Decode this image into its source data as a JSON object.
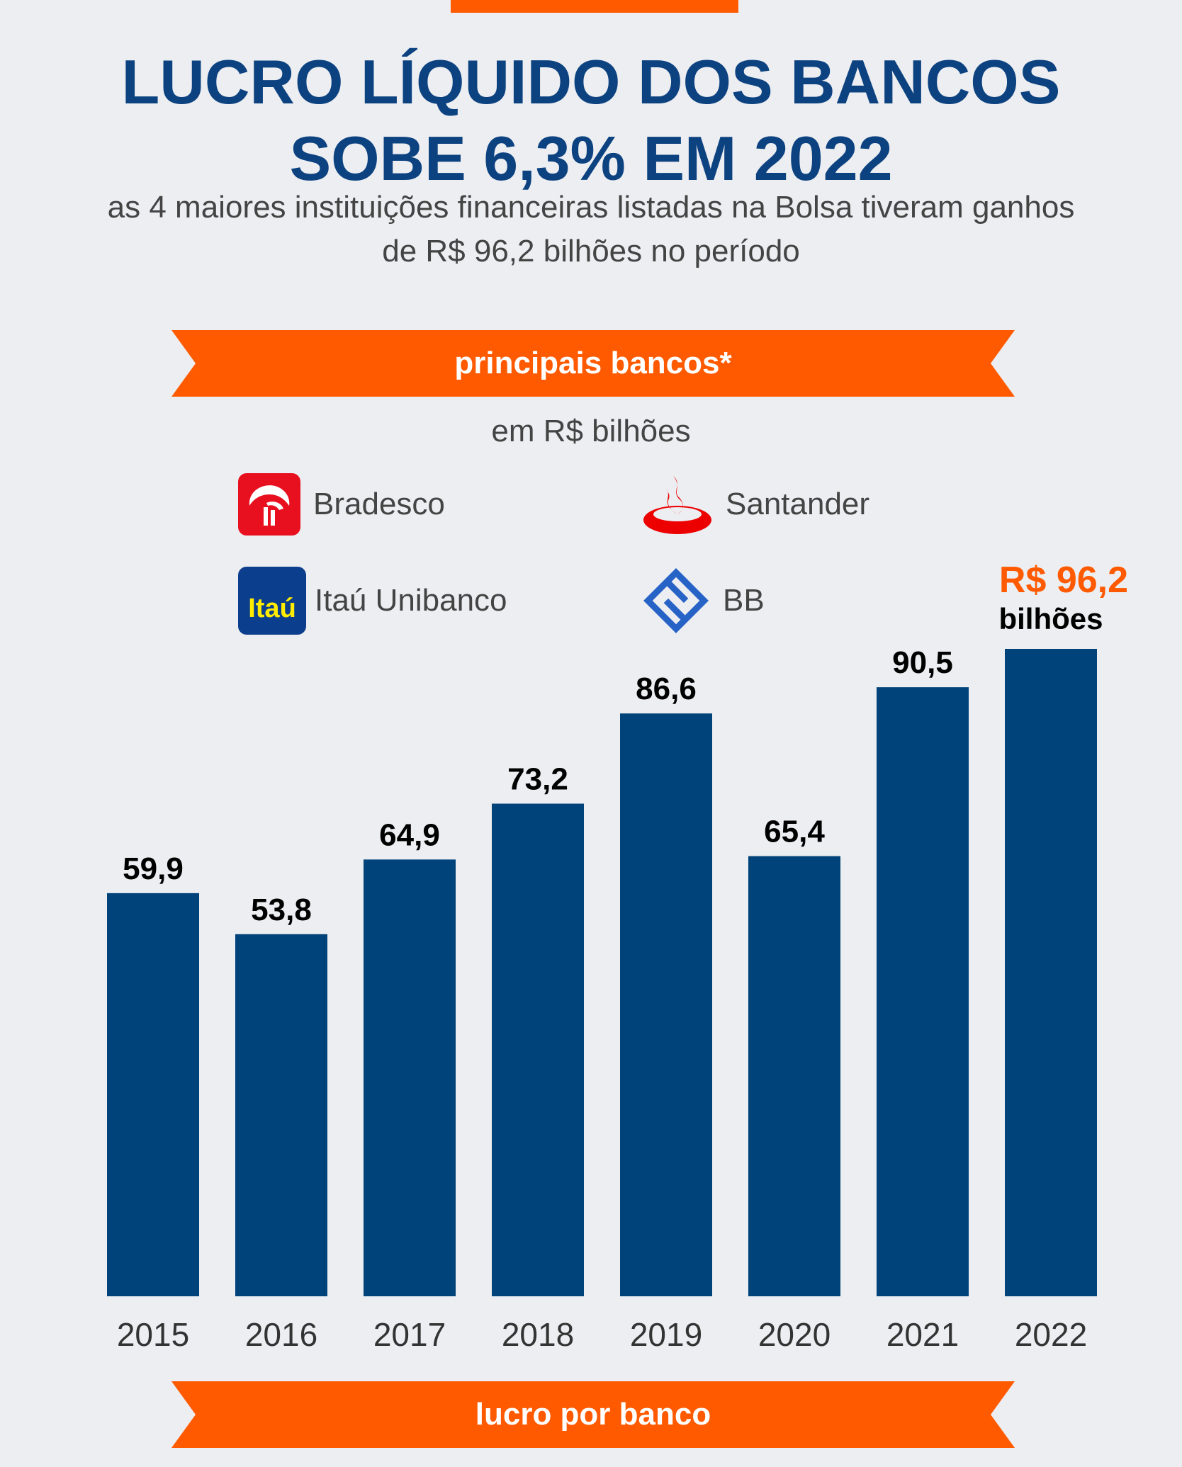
{
  "title_line1": "LUCRO LÍQUIDO DOS BANCOS",
  "title_line2": "SOBE 6,3% EM 2022",
  "subtitle_line1": "as 4 maiores instituições financeiras listadas na Bolsa tiveram ganhos",
  "subtitle_line2": "de R$ 96,2 bilhões no período",
  "ribbon_top": "principais bancos*",
  "unit": "em R$ bilhões",
  "legend": {
    "bradesco": "Bradesco",
    "santander": "Santander",
    "itau": "Itaú Unibanco",
    "itau_logo_text": "Itaú",
    "bb": "BB"
  },
  "ribbon_bottom": "lucro por banco",
  "colors": {
    "bar": "#00427a",
    "accent": "#ff5a00",
    "title": "#0d4280",
    "bradesco": "#e8101f",
    "santander": "#ec0000",
    "itau_bg": "#0b3e8c",
    "itau_text": "#ffec00",
    "bb": "#2763c6"
  },
  "chart_data": {
    "type": "bar",
    "categories": [
      "2015",
      "2016",
      "2017",
      "2018",
      "2019",
      "2020",
      "2021",
      "2022"
    ],
    "values": [
      59.9,
      53.8,
      64.9,
      73.2,
      86.6,
      65.4,
      90.5,
      96.2
    ],
    "labels": [
      "59,9",
      "53,8",
      "64,9",
      "73,2",
      "86,6",
      "65,4",
      "90,5",
      ""
    ],
    "highlight": {
      "index": 7,
      "value_label": "R$ 96,2",
      "unit_label": "bilhões"
    },
    "ylim": [
      0,
      96.2
    ]
  }
}
